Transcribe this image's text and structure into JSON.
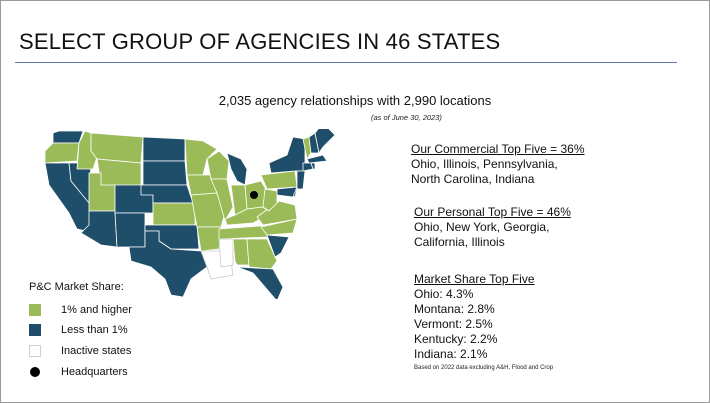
{
  "title": "SELECT GROUP OF AGENCIES IN 46 STATES",
  "subtitle": "2,035 agency relationships with 2,990 locations",
  "as_of": "(as of June 30, 2023)",
  "colors": {
    "high": "#9bbb59",
    "low": "#1f4e6b",
    "inactive": "#ffffff",
    "border": "#ffffff",
    "rule": "#5b7ea6"
  },
  "legend": {
    "title": "P&C Market Share:",
    "items": [
      {
        "label": "1% and higher",
        "swatch": "high"
      },
      {
        "label": "Less than 1%",
        "swatch": "low"
      },
      {
        "label": "Inactive states",
        "swatch": "inactive"
      },
      {
        "label": "Headquarters",
        "swatch": "hq"
      }
    ]
  },
  "commercial": {
    "heading": "Our Commercial Top Five = 36%",
    "lines": [
      "Ohio, Illinois, Pennsylvania,",
      "North Carolina, Indiana"
    ]
  },
  "personal": {
    "heading": "Our Personal Top Five = 46%",
    "lines": [
      "Ohio, New York, Georgia,",
      "California, Illinois"
    ]
  },
  "market_share": {
    "heading": "Market Share Top Five",
    "items": [
      "Ohio: 4.3%",
      "Montana: 2.8%",
      "Vermont: 2.5%",
      "Kentucky: 2.2%",
      "Indiana: 2.1%"
    ]
  },
  "footnote": "Based on 2022 data excluding A&H, Flood and Crop",
  "map": {
    "high_states": [
      "Oregon",
      "Idaho",
      "Montana",
      "Wyoming",
      "Utah",
      "Kansas",
      "Minnesota",
      "Iowa",
      "Missouri",
      "Arkansas",
      "Wisconsin",
      "Illinois",
      "Indiana",
      "Ohio",
      "Kentucky",
      "Tennessee",
      "Alabama",
      "Georgia",
      "Pennsylvania",
      "West Virginia",
      "Virginia",
      "North Carolina",
      "Vermont"
    ],
    "low_states": [
      "Washington",
      "California",
      "Nevada",
      "Arizona",
      "New Mexico",
      "Colorado",
      "Texas",
      "Oklahoma",
      "North Dakota",
      "South Dakota",
      "Nebraska",
      "Michigan",
      "New York",
      "Maine",
      "New Hampshire",
      "Massachusetts",
      "Connecticut",
      "Rhode Island",
      "New Jersey",
      "Delaware",
      "Maryland",
      "South Carolina",
      "Florida"
    ],
    "inactive_states": [
      "Louisiana",
      "Mississippi"
    ],
    "headquarters": "Ohio"
  }
}
